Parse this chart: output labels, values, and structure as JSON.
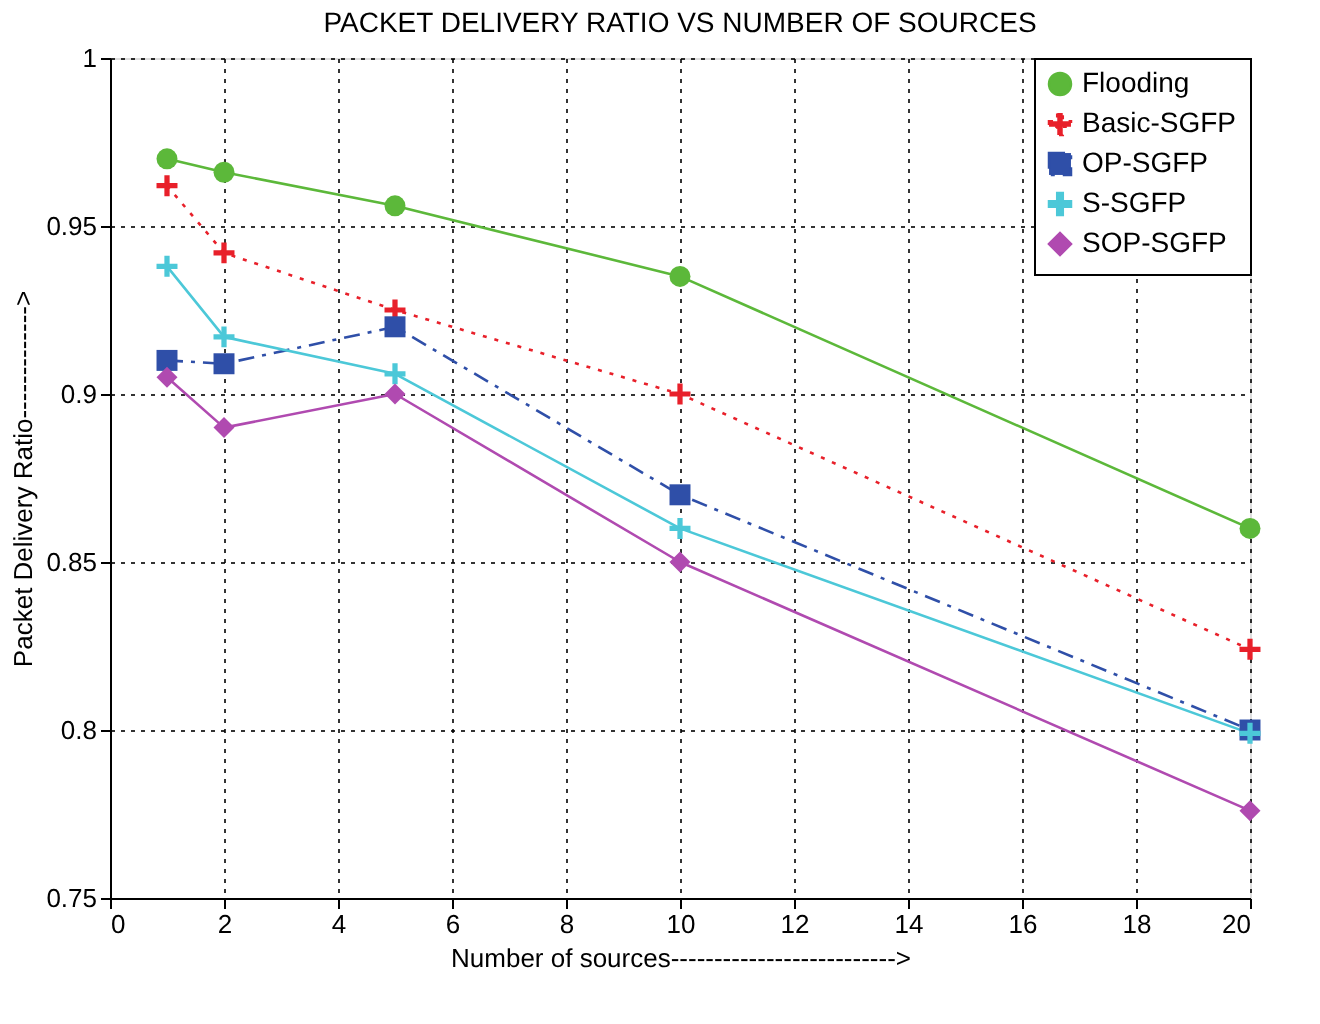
{
  "chart_data": {
    "type": "line",
    "title": "PACKET DELIVERY RATIO VS NUMBER OF SOURCES",
    "xlabel": "Number of sources-------------------------->",
    "ylabel": "Packet Delivery Ratio------------->",
    "x": [
      1,
      2,
      5,
      10,
      20
    ],
    "series": [
      {
        "name": "Flooding",
        "color": "#5cb83a",
        "marker": "circle",
        "line_style": "solid",
        "values": [
          0.97,
          0.966,
          0.956,
          0.935,
          0.86
        ]
      },
      {
        "name": "Basic-SGFP",
        "color": "#e8202a",
        "marker": "cross",
        "line_style": "dotted",
        "values": [
          0.962,
          0.942,
          0.925,
          0.9,
          0.824
        ]
      },
      {
        "name": "OP-SGFP",
        "color": "#2f4fa8",
        "marker": "square",
        "line_style": "dashed",
        "values": [
          0.91,
          0.909,
          0.92,
          0.87,
          0.8
        ]
      },
      {
        "name": "S-SGFP",
        "color": "#4cc8d8",
        "marker": "cross",
        "line_style": "solid",
        "values": [
          0.938,
          0.917,
          0.906,
          0.86,
          0.799
        ]
      },
      {
        "name": "SOP-SGFP",
        "color": "#b04ab0",
        "marker": "diamond",
        "line_style": "solid",
        "values": [
          0.905,
          0.89,
          0.9,
          0.85,
          0.776
        ]
      }
    ],
    "xlim": [
      0,
      20
    ],
    "xticks": [
      0,
      2,
      4,
      6,
      8,
      10,
      12,
      14,
      16,
      18,
      20
    ],
    "ylim": [
      0.75,
      1
    ],
    "yticks": [
      0.75,
      0.8,
      0.85,
      0.9,
      0.95,
      1
    ],
    "grid": true,
    "legend": "top right"
  }
}
